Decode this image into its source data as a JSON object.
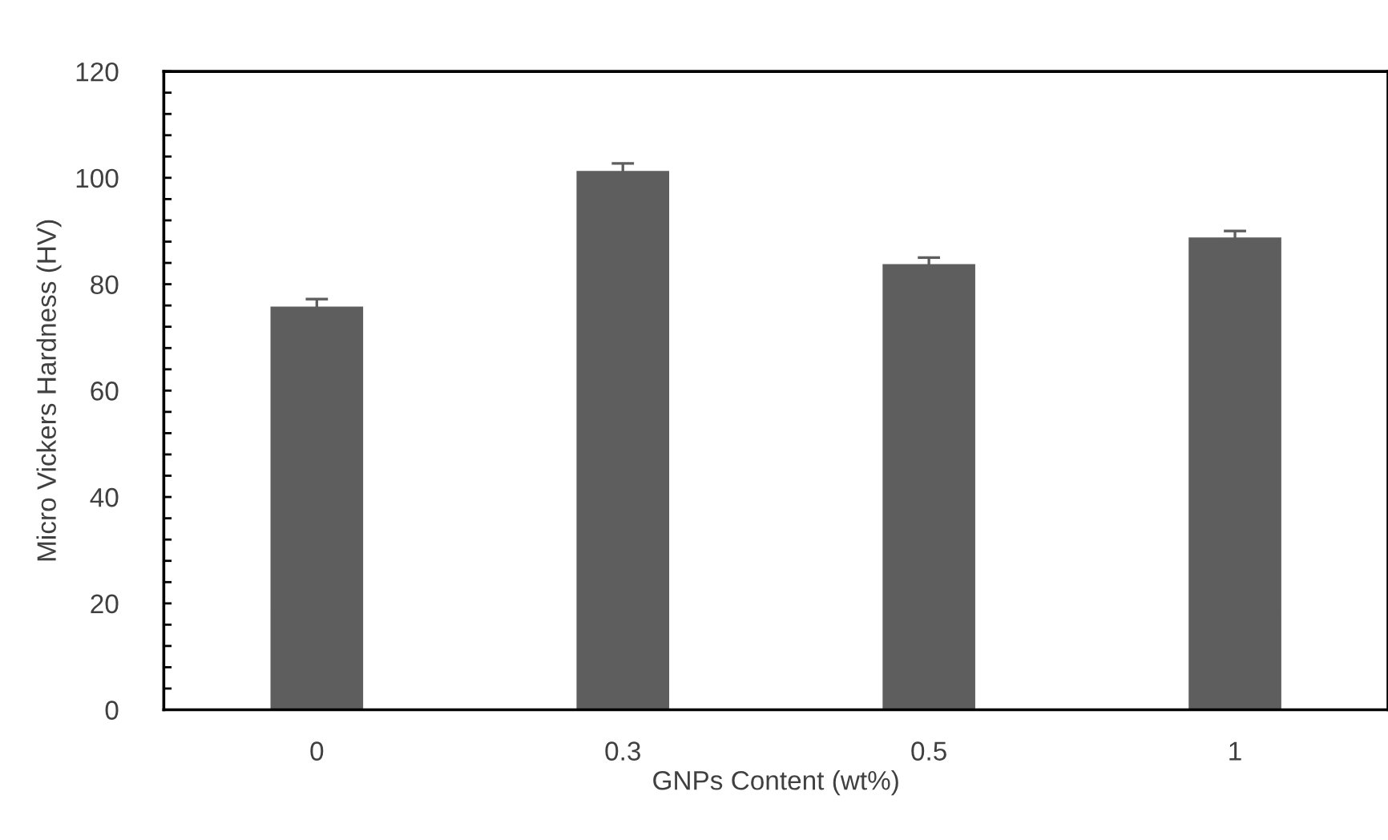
{
  "chart_data": {
    "type": "bar",
    "xlabel": "GNPs Content (wt%)",
    "ylabel": "Micro Vickers Hardness (HV)",
    "categories": [
      "0",
      "0.3",
      "0.5",
      "1"
    ],
    "values": [
      76,
      101.5,
      84,
      89
    ],
    "errors": [
      1.2,
      1.2,
      1,
      1
    ],
    "color": "#5e5e5e",
    "ylim": [
      0,
      120
    ],
    "yticks": [
      0,
      {
        "value": 4,
        "label": null
      },
      {
        "value": 8,
        "label": null
      },
      {
        "value": 12,
        "label": null
      },
      {
        "value": 16,
        "label": null
      },
      20,
      {
        "value": 24,
        "label": null
      },
      {
        "value": 28,
        "label": null
      },
      {
        "value": 32,
        "label": null
      },
      {
        "value": 36,
        "label": null
      },
      40,
      {
        "value": 44,
        "label": null
      },
      {
        "value": 48,
        "label": null
      },
      {
        "value": 52,
        "label": null
      },
      {
        "value": 56,
        "label": null
      },
      60,
      {
        "value": 64,
        "label": null
      },
      {
        "value": 68,
        "label": null
      },
      {
        "value": 72,
        "label": null
      },
      {
        "value": 76,
        "label": null
      },
      80,
      {
        "value": 84,
        "label": null
      },
      {
        "value": 88,
        "label": null
      },
      {
        "value": 92,
        "label": null
      },
      {
        "value": 96,
        "label": null
      },
      100,
      {
        "value": 104,
        "label": null
      },
      {
        "value": 108,
        "label": null
      },
      {
        "value": 112,
        "label": null
      },
      {
        "value": 116,
        "label": null
      },
      120
    ],
    "grid": false,
    "legend": false
  }
}
